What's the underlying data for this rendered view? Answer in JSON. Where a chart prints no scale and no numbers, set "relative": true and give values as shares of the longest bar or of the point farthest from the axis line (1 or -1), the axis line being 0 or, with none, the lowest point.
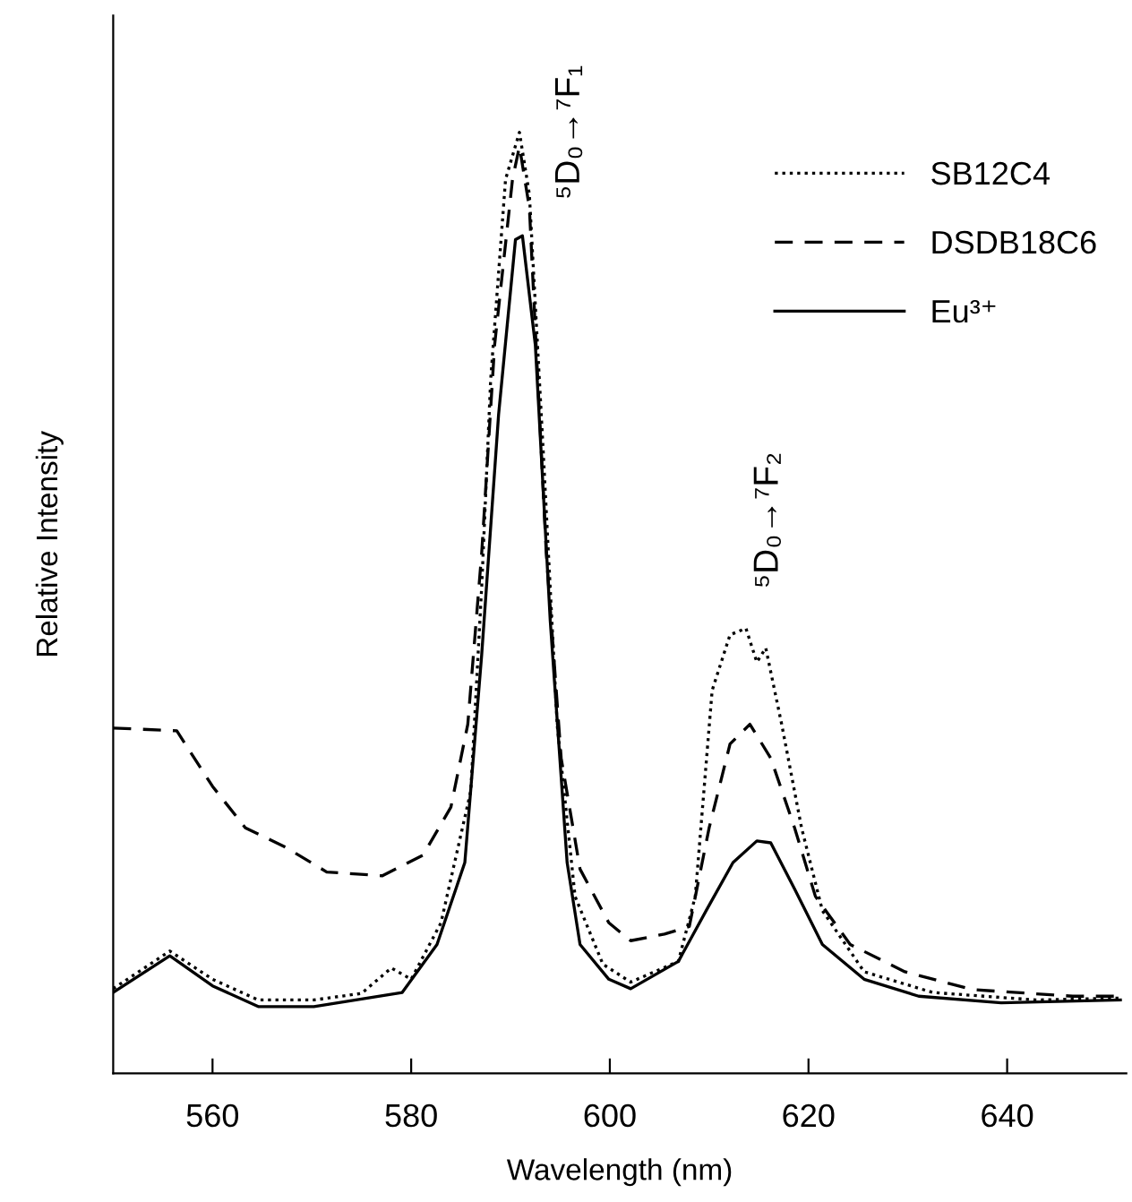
{
  "chart_data": {
    "type": "line",
    "relative": true,
    "xlabel": "Wavelength (nm)",
    "ylabel": "Relative Intensity",
    "xlim": [
      550,
      652
    ],
    "xticks": [
      560,
      580,
      600,
      620,
      640
    ],
    "legend": "top right",
    "grid": false,
    "annotations": [
      {
        "text": "⁵D₀→⁷F₁",
        "x": 591,
        "y": 1.0
      },
      {
        "text": "⁵D₀→⁷F₂",
        "x": 614,
        "y": 0.473
      }
    ],
    "series": [
      {
        "name": "SB12C4",
        "color": "#000000",
        "line_style": "dotted",
        "x": [
          550,
          555.7,
          560,
          564.6,
          570.2,
          575,
          578,
          580,
          583,
          586,
          587.1,
          588,
          589.5,
          590.9,
          591.9,
          593.3,
          594.7,
          596.5,
          599.3,
          602.1,
          606.9,
          608.6,
          610.3,
          612.1,
          613.7,
          614.8,
          615.7,
          617.3,
          619.3,
          621.4,
          625.6,
          632.5,
          642.9,
          651.4
        ],
        "values": [
          0.09,
          0.13,
          0.1,
          0.078,
          0.078,
          0.085,
          0.112,
          0.1,
          0.16,
          0.3,
          0.517,
          0.737,
          0.95,
          1.0,
          0.934,
          0.66,
          0.37,
          0.188,
          0.116,
          0.097,
          0.119,
          0.188,
          0.407,
          0.466,
          0.473,
          0.437,
          0.452,
          0.371,
          0.261,
          0.173,
          0.108,
          0.086,
          0.078,
          0.08
        ]
      },
      {
        "name": "DSDB18C6",
        "color": "#000000",
        "line_style": "dashed",
        "x": [
          550,
          556.4,
          560,
          563.3,
          567.4,
          571.5,
          577.1,
          581.2,
          584,
          585.7,
          587.1,
          588.4,
          590.2,
          590.9,
          591.9,
          593.6,
          595.1,
          597,
          599.9,
          602.1,
          605.5,
          608,
          610,
          612.1,
          614.1,
          616.2,
          618.6,
          620.7,
          624.2,
          629.7,
          636.5,
          646.6,
          651.4
        ],
        "values": [
          0.367,
          0.364,
          0.305,
          0.261,
          0.24,
          0.214,
          0.21,
          0.232,
          0.283,
          0.371,
          0.553,
          0.774,
          0.95,
          0.985,
          0.92,
          0.553,
          0.335,
          0.217,
          0.16,
          0.141,
          0.148,
          0.156,
          0.261,
          0.35,
          0.371,
          0.335,
          0.261,
          0.188,
          0.137,
          0.108,
          0.089,
          0.082,
          0.082
        ]
      },
      {
        "name": "Eu³⁺",
        "color": "#000000",
        "line_style": "solid",
        "x": [
          550,
          555.7,
          560,
          564.6,
          570.2,
          579.1,
          582.6,
          585.4,
          587.1,
          588.8,
          590.5,
          591.2,
          592.5,
          594,
          595.7,
          597,
          599.9,
          602.1,
          606.9,
          609.7,
          612.4,
          614.8,
          616.2,
          618.6,
          621.4,
          625.6,
          631.1,
          639.4,
          651.4
        ],
        "values": [
          0.086,
          0.125,
          0.093,
          0.071,
          0.071,
          0.086,
          0.137,
          0.224,
          0.445,
          0.7,
          0.886,
          0.89,
          0.774,
          0.481,
          0.224,
          0.137,
          0.1,
          0.09,
          0.119,
          0.173,
          0.224,
          0.247,
          0.245,
          0.196,
          0.137,
          0.1,
          0.082,
          0.075,
          0.078
        ]
      }
    ]
  }
}
